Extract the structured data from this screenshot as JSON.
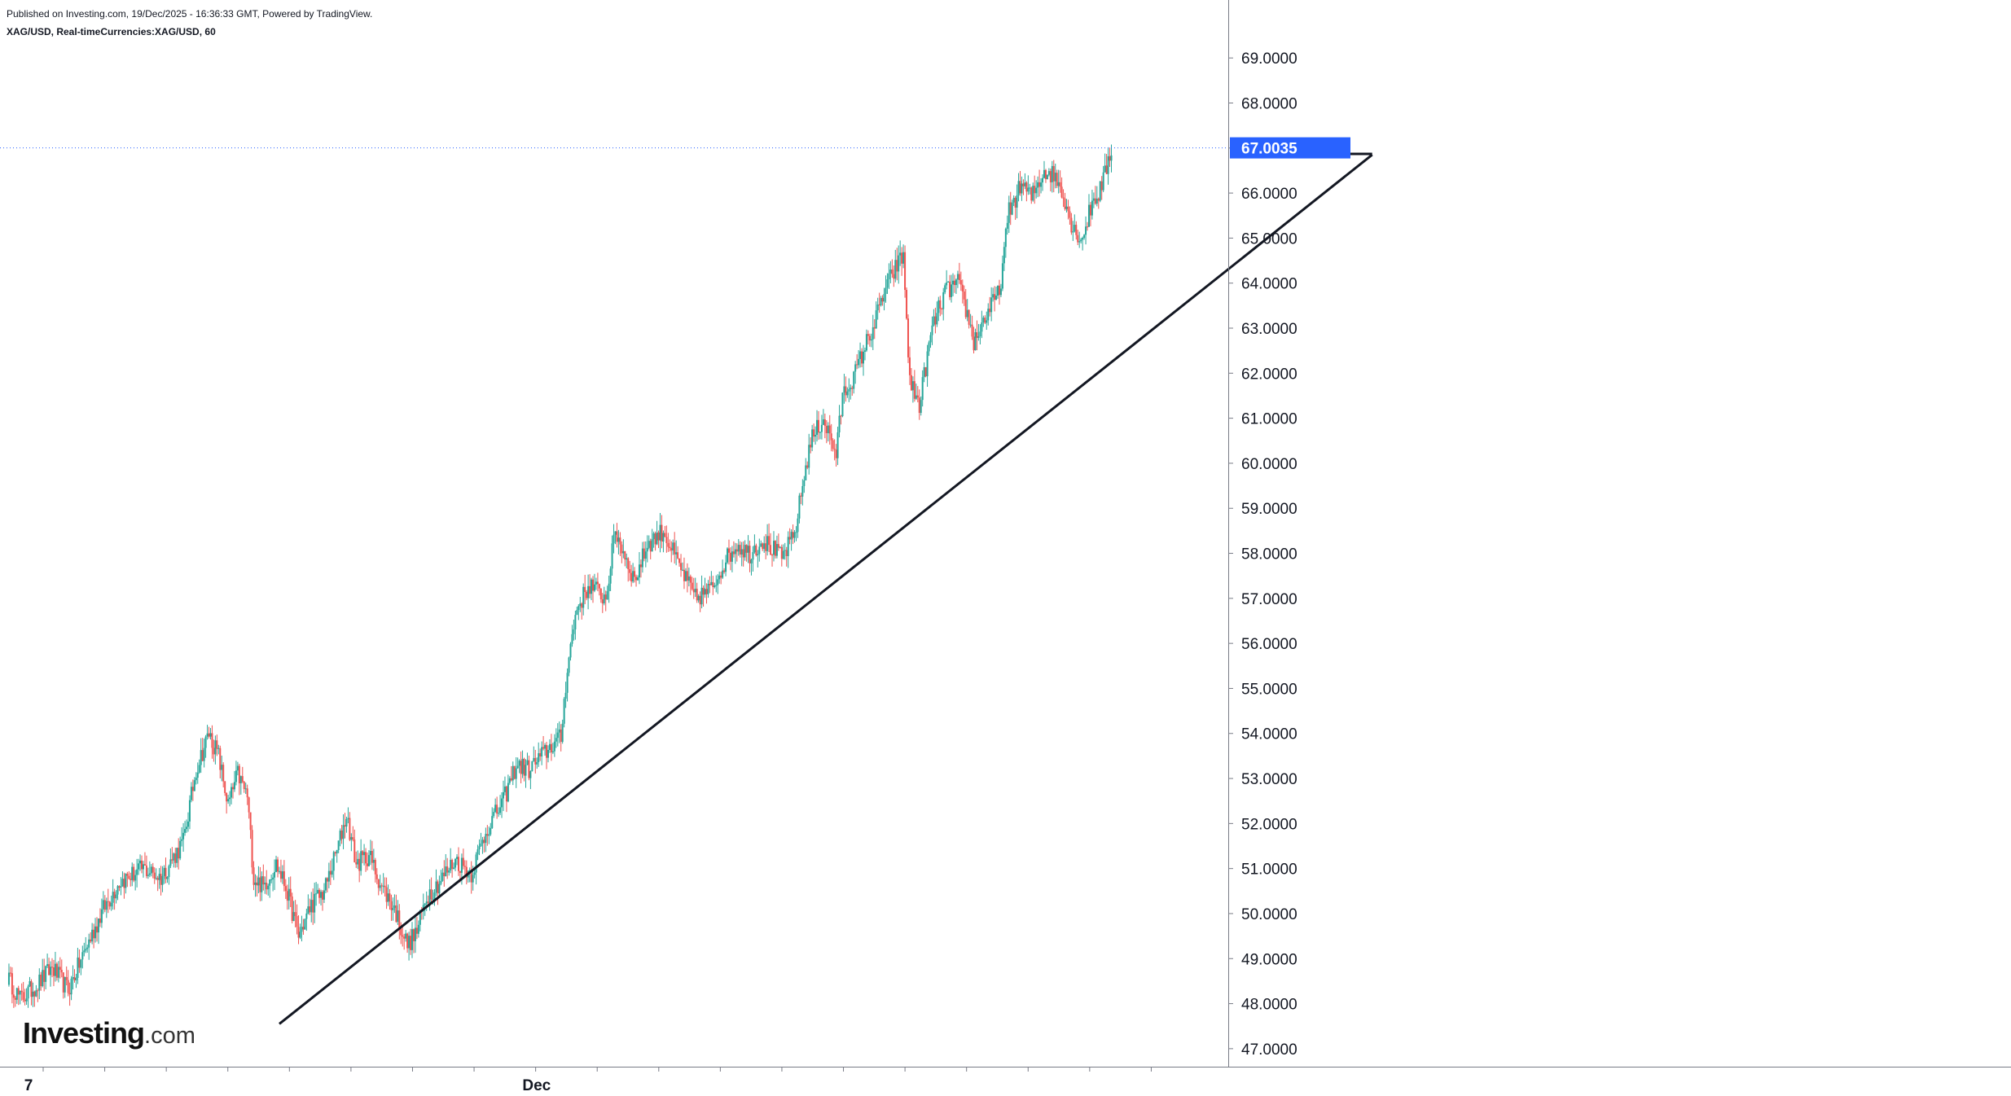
{
  "header": {
    "published": "Published on Investing.com, 19/Dec/2025 - 16:36:33 GMT, Powered by TradingView.",
    "symbol_line": "XAG/USD, Real-timeCurrencies:XAG/USD, 60"
  },
  "logo": {
    "brand": "Investing",
    "tld": ".com"
  },
  "colors": {
    "up": "#26a69a",
    "down": "#ef5350",
    "price_tag": "#2962ff",
    "trendline": "#131722"
  },
  "chart_data": {
    "type": "candlestick",
    "symbol": "XAG/USD",
    "interval": "60",
    "ylim": [
      46.6,
      69.6
    ],
    "y_ticks": [
      "47.0000",
      "48.0000",
      "49.0000",
      "50.0000",
      "51.0000",
      "52.0000",
      "53.0000",
      "54.0000",
      "55.0000",
      "56.0000",
      "57.0000",
      "58.0000",
      "59.0000",
      "60.0000",
      "61.0000",
      "62.0000",
      "63.0000",
      "64.0000",
      "65.0000",
      "66.0000",
      "67.0000",
      "68.0000",
      "69.0000"
    ],
    "x_ticks": [
      {
        "label": "7",
        "pos": 0.02
      },
      {
        "label": "Dec",
        "pos": 0.435
      }
    ],
    "last_price": 67.0035,
    "last_price_label": "67.0035",
    "anchors": [
      [
        0,
        48.6
      ],
      [
        8,
        48.1
      ],
      [
        18,
        48.4
      ],
      [
        28,
        48.8
      ],
      [
        38,
        48.3
      ],
      [
        50,
        49.3
      ],
      [
        60,
        50.1
      ],
      [
        70,
        50.7
      ],
      [
        85,
        51.0
      ],
      [
        96,
        50.8
      ],
      [
        110,
        51.6
      ],
      [
        118,
        53.2
      ],
      [
        126,
        54.0
      ],
      [
        132,
        53.5
      ],
      [
        138,
        52.4
      ],
      [
        144,
        53.1
      ],
      [
        150,
        52.6
      ],
      [
        154,
        50.8
      ],
      [
        160,
        50.6
      ],
      [
        168,
        51.1
      ],
      [
        174,
        50.6
      ],
      [
        182,
        49.5
      ],
      [
        190,
        50.2
      ],
      [
        198,
        50.5
      ],
      [
        206,
        51.4
      ],
      [
        212,
        52.2
      ],
      [
        218,
        51.1
      ],
      [
        226,
        51.3
      ],
      [
        234,
        50.6
      ],
      [
        242,
        50.1
      ],
      [
        250,
        49.3
      ],
      [
        256,
        49.6
      ],
      [
        262,
        50.4
      ],
      [
        270,
        50.7
      ],
      [
        280,
        51.2
      ],
      [
        290,
        50.9
      ],
      [
        300,
        51.9
      ],
      [
        310,
        52.5
      ],
      [
        318,
        53.3
      ],
      [
        326,
        53.2
      ],
      [
        334,
        53.5
      ],
      [
        342,
        53.8
      ],
      [
        346,
        53.9
      ],
      [
        350,
        55.5
      ],
      [
        356,
        56.8
      ],
      [
        364,
        57.3
      ],
      [
        374,
        57.0
      ],
      [
        380,
        58.5
      ],
      [
        392,
        57.4
      ],
      [
        400,
        58.2
      ],
      [
        410,
        58.5
      ],
      [
        420,
        57.7
      ],
      [
        430,
        57.0
      ],
      [
        440,
        57.2
      ],
      [
        448,
        57.8
      ],
      [
        456,
        58.2
      ],
      [
        464,
        58.0
      ],
      [
        472,
        58.3
      ],
      [
        484,
        57.9
      ],
      [
        492,
        58.4
      ],
      [
        496,
        59.3
      ],
      [
        502,
        60.5
      ],
      [
        510,
        61.0
      ],
      [
        518,
        60.2
      ],
      [
        522,
        61.5
      ],
      [
        530,
        62.0
      ],
      [
        536,
        62.6
      ],
      [
        542,
        63.1
      ],
      [
        548,
        63.8
      ],
      [
        556,
        64.4
      ],
      [
        560,
        64.6
      ],
      [
        564,
        61.8
      ],
      [
        570,
        61.3
      ],
      [
        578,
        63.0
      ],
      [
        586,
        63.8
      ],
      [
        594,
        64.0
      ],
      [
        600,
        63.3
      ],
      [
        604,
        62.7
      ],
      [
        612,
        63.3
      ],
      [
        620,
        63.8
      ],
      [
        626,
        65.6
      ],
      [
        634,
        66.2
      ],
      [
        640,
        65.9
      ],
      [
        648,
        66.5
      ],
      [
        654,
        66.4
      ],
      [
        660,
        66.0
      ],
      [
        666,
        65.2
      ],
      [
        672,
        65.0
      ],
      [
        678,
        65.8
      ],
      [
        682,
        66.0
      ],
      [
        686,
        66.4
      ],
      [
        690,
        67.0
      ]
    ],
    "total_bars": 690,
    "trendlines": [
      {
        "from": [
          170,
          47.55
        ],
        "to": [
          853,
          66.85
        ]
      },
      {
        "from": [
          827,
          66.87
        ],
        "to": [
          853,
          66.87
        ]
      }
    ]
  }
}
